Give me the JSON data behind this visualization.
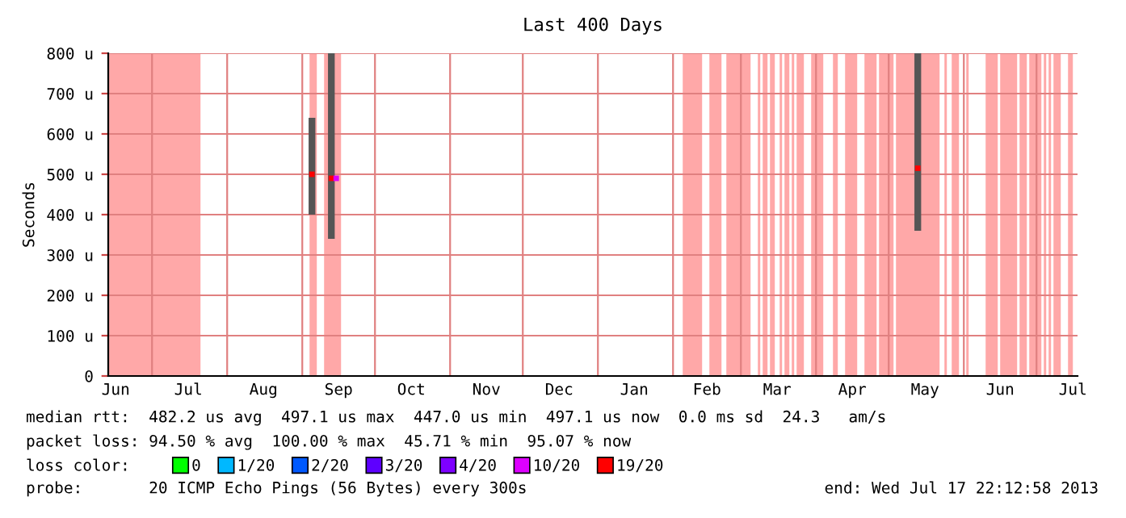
{
  "chart_data": {
    "type": "scatter",
    "title": "Last 400 Days",
    "ylabel": "Seconds",
    "x": [
      "2012-09-05",
      "2012-09-13",
      "2012-09-15",
      "2013-05-13"
    ],
    "xlim": [
      "2012-06-12T22:12",
      "2013-07-17T22:12"
    ],
    "xticks": [
      {
        "value": "2012-06-16",
        "label": "Jun"
      },
      {
        "value": "2012-07-01",
        "label": null
      },
      {
        "value": "2012-07-16",
        "label": "Jul"
      },
      {
        "value": "2012-08-01",
        "label": null
      },
      {
        "value": "2012-08-16",
        "label": "Aug"
      },
      {
        "value": "2012-09-01",
        "label": null
      },
      {
        "value": "2012-09-16",
        "label": "Sep"
      },
      {
        "value": "2012-10-01",
        "label": null
      },
      {
        "value": "2012-10-16",
        "label": "Oct"
      },
      {
        "value": "2012-11-01",
        "label": null
      },
      {
        "value": "2012-11-16",
        "label": "Nov"
      },
      {
        "value": "2012-12-01",
        "label": null
      },
      {
        "value": "2012-12-16",
        "label": "Dec"
      },
      {
        "value": "2013-01-01",
        "label": null
      },
      {
        "value": "2013-01-16",
        "label": "Jan"
      },
      {
        "value": "2013-02-01",
        "label": null
      },
      {
        "value": "2013-02-15",
        "label": "Feb"
      },
      {
        "value": "2013-03-01",
        "label": null
      },
      {
        "value": "2013-03-16",
        "label": "Mar"
      },
      {
        "value": "2013-04-01",
        "label": null
      },
      {
        "value": "2013-04-16",
        "label": "Apr"
      },
      {
        "value": "2013-05-01",
        "label": null
      },
      {
        "value": "2013-05-16",
        "label": "May"
      },
      {
        "value": "2013-06-01",
        "label": null
      },
      {
        "value": "2013-06-16",
        "label": "Jun"
      },
      {
        "value": "2013-07-01",
        "label": null
      },
      {
        "value": "2013-07-16",
        "label": "Jul"
      }
    ],
    "ylim": [
      0,
      800
    ],
    "yticks": [
      0,
      {
        "value": 100,
        "label": "100 u"
      },
      {
        "value": 200,
        "label": "200 u"
      },
      {
        "value": 300,
        "label": "300 u"
      },
      {
        "value": 400,
        "label": "400 u"
      },
      {
        "value": 500,
        "label": "500 u"
      },
      {
        "value": 600,
        "label": "600 u"
      },
      {
        "value": 700,
        "label": "700 u"
      },
      {
        "value": 800,
        "label": "800 u"
      }
    ],
    "grid": true,
    "marker": "square",
    "legend": "bottom",
    "legend_title": "loss color:",
    "series": [
      {
        "name": "0",
        "color": "#00ff00",
        "values": [
          null,
          null,
          null,
          null
        ]
      },
      {
        "name": "1/20",
        "color": "#00b8ff",
        "values": [
          null,
          null,
          null,
          null
        ]
      },
      {
        "name": "2/20",
        "color": "#0059ff",
        "values": [
          null,
          null,
          null,
          null
        ]
      },
      {
        "name": "3/20",
        "color": "#5e00ff",
        "values": [
          null,
          null,
          null,
          null
        ]
      },
      {
        "name": "4/20",
        "color": "#7e00ff",
        "values": [
          null,
          null,
          null,
          null
        ]
      },
      {
        "name": "10/20",
        "color": "#dd00ff",
        "values": [
          null,
          null,
          490,
          null
        ]
      },
      {
        "name": "19/20",
        "color": "#ff0000",
        "values": [
          500,
          490,
          null,
          515
        ],
        "errors": [
          [
            400,
            640
          ],
          [
            340,
            800
          ],
          null,
          [
            360,
            800
          ]
        ]
      }
    ],
    "bands": [
      {
        "axis": "x",
        "from": "2012-06-12T22:12",
        "to": "2012-07-21",
        "color": "#ffa8a8"
      },
      {
        "axis": "x",
        "from": "2012-09-04",
        "to": "2012-09-07",
        "color": "#ffa8a8"
      },
      {
        "axis": "x",
        "from": "2012-09-10",
        "to": "2012-09-17",
        "color": "#ffa8a8"
      },
      {
        "axis": "x",
        "from": "2013-02-05",
        "to": "2013-02-13",
        "color": "#ffa8a8"
      },
      {
        "axis": "x",
        "from": "2013-02-16",
        "to": "2013-02-21",
        "color": "#ffa8a8"
      },
      {
        "axis": "x",
        "from": "2013-02-23",
        "to": "2013-03-05",
        "color": "#ffa8a8"
      },
      {
        "axis": "x",
        "from": "2013-03-08",
        "to": "2013-03-09",
        "color": "#ffa8a8"
      },
      {
        "axis": "x",
        "from": "2013-03-10",
        "to": "2013-03-12",
        "color": "#ffa8a8"
      },
      {
        "axis": "x",
        "from": "2013-03-13",
        "to": "2013-03-15",
        "color": "#ffa8a8"
      },
      {
        "axis": "x",
        "from": "2013-03-17",
        "to": "2013-03-18",
        "color": "#ffa8a8"
      },
      {
        "axis": "x",
        "from": "2013-03-19",
        "to": "2013-03-21",
        "color": "#ffa8a8"
      },
      {
        "axis": "x",
        "from": "2013-03-22",
        "to": "2013-03-23",
        "color": "#ffa8a8"
      },
      {
        "axis": "x",
        "from": "2013-03-24",
        "to": "2013-03-27",
        "color": "#ffa8a8"
      },
      {
        "axis": "x",
        "from": "2013-03-30",
        "to": "2013-04-04",
        "color": "#ffa8a8"
      },
      {
        "axis": "x",
        "from": "2013-04-08",
        "to": "2013-04-10",
        "color": "#ffa8a8"
      },
      {
        "axis": "x",
        "from": "2013-04-13",
        "to": "2013-04-18",
        "color": "#ffa8a8"
      },
      {
        "axis": "x",
        "from": "2013-04-21",
        "to": "2013-04-26",
        "color": "#ffa8a8"
      },
      {
        "axis": "x",
        "from": "2013-04-27",
        "to": "2013-05-03",
        "color": "#ffa8a8"
      },
      {
        "axis": "x",
        "from": "2013-05-04",
        "to": "2013-05-22",
        "color": "#ffa8a8"
      },
      {
        "axis": "x",
        "from": "2013-05-24",
        "to": "2013-05-25",
        "color": "#ffa8a8"
      },
      {
        "axis": "x",
        "from": "2013-05-27",
        "to": "2013-05-30",
        "color": "#ffa8a8"
      },
      {
        "axis": "x",
        "from": "2013-06-02",
        "to": "2013-06-03",
        "color": "#ffa8a8"
      },
      {
        "axis": "x",
        "from": "2013-06-10",
        "to": "2013-06-15",
        "color": "#ffa8a8"
      },
      {
        "axis": "x",
        "from": "2013-06-16",
        "to": "2013-06-23",
        "color": "#ffa8a8"
      },
      {
        "axis": "x",
        "from": "2013-06-24",
        "to": "2013-06-27",
        "color": "#ffa8a8"
      },
      {
        "axis": "x",
        "from": "2013-06-28",
        "to": "2013-07-03",
        "color": "#ffa8a8"
      },
      {
        "axis": "x",
        "from": "2013-07-04",
        "to": "2013-07-05",
        "color": "#ffa8a8"
      },
      {
        "axis": "x",
        "from": "2013-07-06",
        "to": "2013-07-07",
        "color": "#ffa8a8"
      },
      {
        "axis": "x",
        "from": "2013-07-08",
        "to": "2013-07-11",
        "color": "#ffa8a8"
      },
      {
        "axis": "x",
        "from": "2013-07-14",
        "to": "2013-07-16",
        "color": "#ffa8a8"
      }
    ],
    "annotations": [
      "median rtt:  482.2 us avg  497.1 us max  447.0 us min  497.1 us now  0.0 ms sd  24.3   am/s",
      "packet loss: 94.50 % avg  100.00 % max  45.71 % min  95.07 % now",
      "probe:       20 ICMP Echo Pings (56 Bytes) every 300s",
      "end: Wed Jul 17 22:12:58 2013"
    ]
  }
}
